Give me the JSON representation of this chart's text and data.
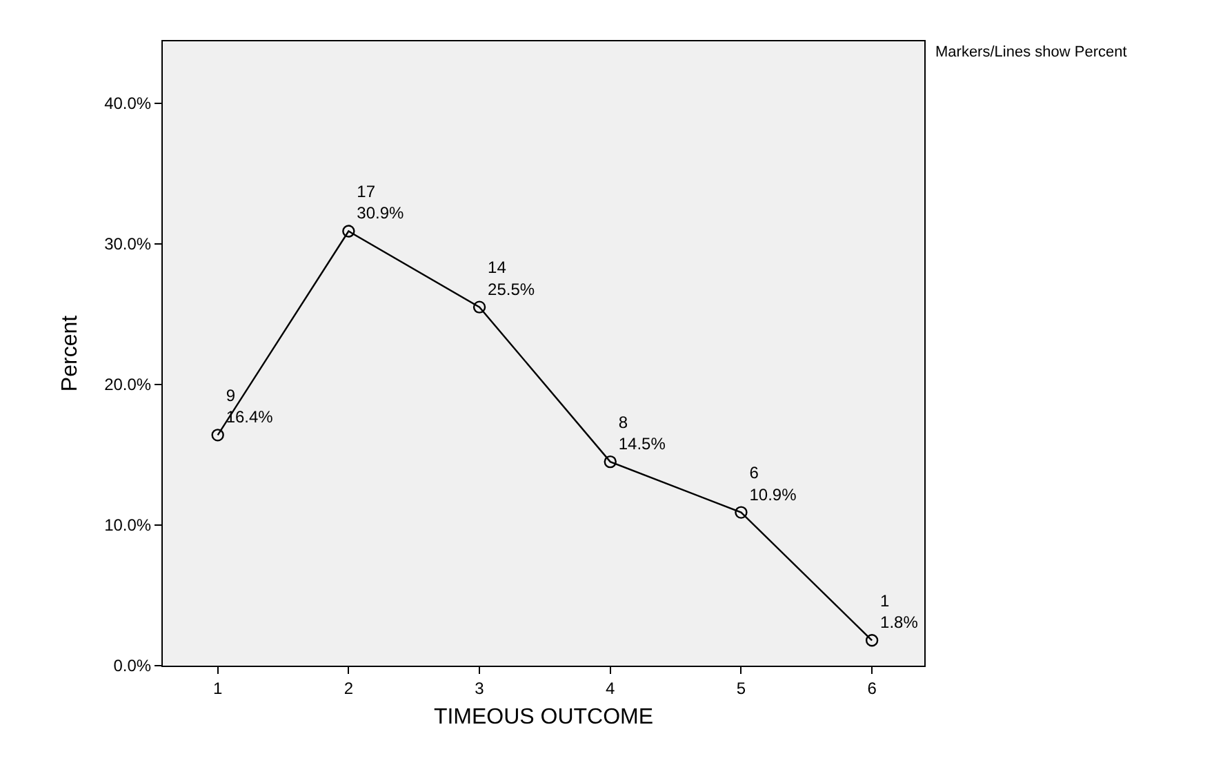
{
  "chart_data": {
    "type": "line",
    "xlabel": "TIMEOUS OUTCOME",
    "ylabel": "Percent",
    "categories": [
      "1",
      "2",
      "3",
      "4",
      "5",
      "6"
    ],
    "series": [
      {
        "color": "#000000",
        "values": [
          16.4,
          30.9,
          25.5,
          14.5,
          10.9,
          1.8
        ],
        "value_labels": [
          "9\n16.4%",
          "17\n30.9%",
          "14\n25.5%",
          "8\n14.5%",
          "6\n10.9%",
          "1\n1.8%"
        ]
      }
    ],
    "ylim": [
      0,
      44.4
    ],
    "yticks": [
      {
        "value": 0,
        "label": "0.0%"
      },
      {
        "value": 10,
        "label": "10.0%"
      },
      {
        "value": 20,
        "label": "20.0%"
      },
      {
        "value": 30,
        "label": "30.0%"
      },
      {
        "value": 40,
        "label": "40.0%"
      }
    ],
    "annotations": [
      "Markers/Lines show Percent"
    ],
    "marker": "circle",
    "line_style": "solid",
    "grid": false,
    "legend": false
  }
}
